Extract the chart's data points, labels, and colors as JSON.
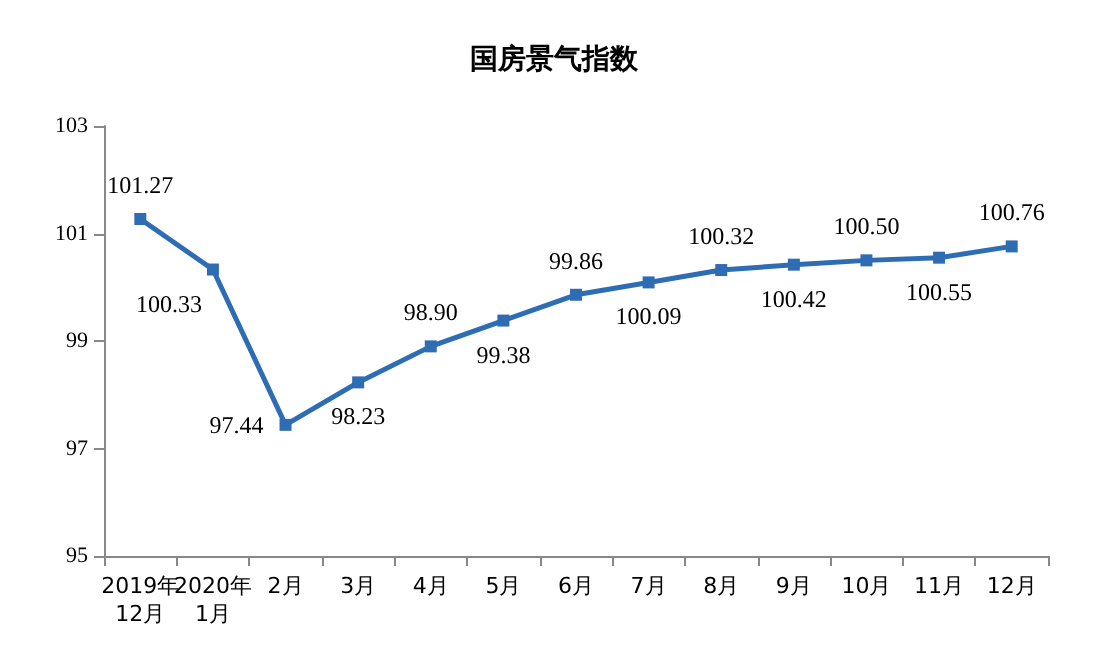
{
  "chart_data": {
    "type": "line",
    "title": "国房景气指数",
    "categories": [
      "2019年\n12月",
      "2020年\n1月",
      "2月",
      "3月",
      "4月",
      "5月",
      "6月",
      "7月",
      "8月",
      "9月",
      "10月",
      "11月",
      "12月"
    ],
    "series": [
      {
        "color": "#2e6db4",
        "values": [
          101.27,
          100.33,
          97.44,
          98.23,
          98.9,
          99.38,
          99.86,
          100.09,
          100.32,
          100.42,
          100.5,
          100.55,
          100.76
        ],
        "value_labels": [
          "101.27",
          "100.33",
          "97.44",
          "98.23",
          "98.90",
          "99.38",
          "99.86",
          "100.09",
          "100.32",
          "100.42",
          "100.50",
          "100.55",
          "100.76"
        ]
      }
    ],
    "ylim": [
      95,
      103
    ],
    "yticks": [
      95,
      97,
      99,
      101,
      103
    ],
    "grid": false,
    "marker": "square",
    "line_style": "solid"
  }
}
